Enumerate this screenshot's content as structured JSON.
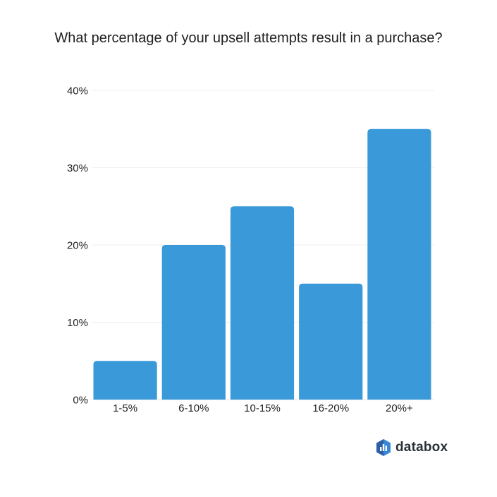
{
  "chart_data": {
    "type": "bar",
    "title": "What percentage of your upsell attempts result in a purchase?",
    "categories": [
      "1-5%",
      "6-10%",
      "10-15%",
      "16-20%",
      "20%+"
    ],
    "values": [
      5,
      20,
      25,
      15,
      35
    ],
    "ylim": [
      0,
      40
    ],
    "yticks": [
      0,
      10,
      20,
      30,
      40
    ],
    "ytick_labels": [
      "0%",
      "10%",
      "20%",
      "30%",
      "40%"
    ],
    "xlabel": "",
    "ylabel": "",
    "grid": true,
    "bar_color": "#3a9ad9"
  },
  "branding": {
    "name": "databox"
  }
}
